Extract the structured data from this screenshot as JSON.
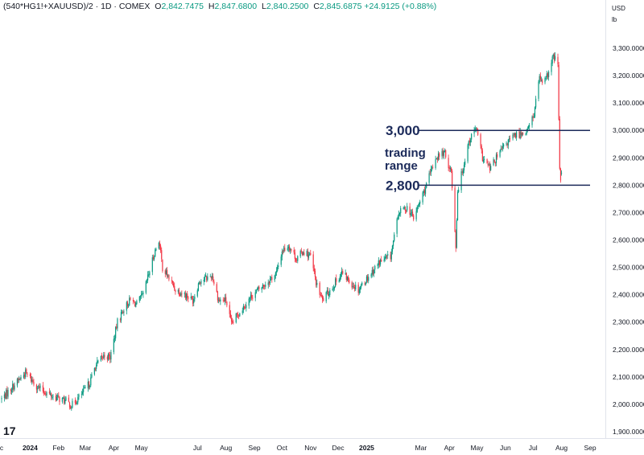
{
  "header": {
    "symbol": "(540*HG1!+XAUUSD)/2 · 1D · COMEX",
    "open_label": "O",
    "open": "2,842.7475",
    "high_label": "H",
    "high": "2,847.6800",
    "low_label": "L",
    "low": "2,840.2500",
    "close_label": "C",
    "close": "2,845.6875",
    "change": "+24.9125 (+0.88%)"
  },
  "axis": {
    "currency": "USD",
    "unit": "lb"
  },
  "logo": {
    "text": "17"
  },
  "chart_data": {
    "type": "candlestick",
    "ylim": [
      1900,
      3400
    ],
    "yticks": [
      1900,
      2000,
      2100,
      2200,
      2300,
      2400,
      2500,
      2600,
      2700,
      2800,
      2900,
      3000,
      3100,
      3200,
      3300
    ],
    "ytick_labels": [
      "1,900.0000",
      "2,000.0000",
      "2,100.0000",
      "2,200.0000",
      "2,300.0000",
      "2,400.0000",
      "2,500.0000",
      "2,600.0000",
      "2,700.0000",
      "2,800.0000",
      "2,900.0000",
      "3,000.0000",
      "3,100.0000",
      "3,200.0000",
      "3,300.0000"
    ],
    "xticks": [
      {
        "label": "c",
        "date": "2023-12-01",
        "bold": false
      },
      {
        "label": "2024",
        "date": "2024-01-01",
        "bold": true
      },
      {
        "label": "Feb",
        "date": "2024-02-01",
        "bold": false
      },
      {
        "label": "Mar",
        "date": "2024-03-01",
        "bold": false
      },
      {
        "label": "Apr",
        "date": "2024-04-01",
        "bold": false
      },
      {
        "label": "May",
        "date": "2024-05-01",
        "bold": false
      },
      {
        "label": "Jul",
        "date": "2024-07-01",
        "bold": false
      },
      {
        "label": "Aug",
        "date": "2024-08-01",
        "bold": false
      },
      {
        "label": "Sep",
        "date": "2024-09-01",
        "bold": false
      },
      {
        "label": "Oct",
        "date": "2024-10-01",
        "bold": false
      },
      {
        "label": "Nov",
        "date": "2024-11-01",
        "bold": false
      },
      {
        "label": "Dec",
        "date": "2024-12-01",
        "bold": false
      },
      {
        "label": "2025",
        "date": "2025-01-01",
        "bold": true
      },
      {
        "label": "Mar",
        "date": "2025-03-01",
        "bold": false
      },
      {
        "label": "Apr",
        "date": "2025-04-01",
        "bold": false
      },
      {
        "label": "May",
        "date": "2025-05-01",
        "bold": false
      },
      {
        "label": "Jun",
        "date": "2025-06-01",
        "bold": false
      },
      {
        "label": "Jul",
        "date": "2025-07-01",
        "bold": false
      },
      {
        "label": "Aug",
        "date": "2025-08-01",
        "bold": false
      },
      {
        "label": "Sep",
        "date": "2025-09-01",
        "bold": false
      }
    ],
    "price_path": [
      [
        "2023-12-01",
        2020
      ],
      [
        "2023-12-20",
        2090
      ],
      [
        "2023-12-27",
        2115
      ],
      [
        "2024-01-10",
        2060
      ],
      [
        "2024-01-25",
        2030
      ],
      [
        "2024-02-10",
        2010
      ],
      [
        "2024-02-15",
        1995
      ],
      [
        "2024-02-28",
        2045
      ],
      [
        "2024-03-06",
        2080
      ],
      [
        "2024-03-12",
        2140
      ],
      [
        "2024-03-22",
        2180
      ],
      [
        "2024-03-28",
        2170
      ],
      [
        "2024-04-05",
        2300
      ],
      [
        "2024-04-12",
        2350
      ],
      [
        "2024-04-19",
        2380
      ],
      [
        "2024-04-26",
        2365
      ],
      [
        "2024-05-03",
        2400
      ],
      [
        "2024-05-15",
        2550
      ],
      [
        "2024-05-20",
        2600
      ],
      [
        "2024-05-24",
        2500
      ],
      [
        "2024-06-07",
        2420
      ],
      [
        "2024-06-18",
        2400
      ],
      [
        "2024-06-26",
        2380
      ],
      [
        "2024-07-03",
        2450
      ],
      [
        "2024-07-17",
        2470
      ],
      [
        "2024-07-24",
        2380
      ],
      [
        "2024-08-01",
        2380
      ],
      [
        "2024-08-07",
        2290
      ],
      [
        "2024-08-14",
        2330
      ],
      [
        "2024-08-30",
        2400
      ],
      [
        "2024-09-13",
        2440
      ],
      [
        "2024-09-25",
        2480
      ],
      [
        "2024-10-01",
        2560
      ],
      [
        "2024-10-08",
        2580
      ],
      [
        "2024-10-17",
        2530
      ],
      [
        "2024-10-24",
        2560
      ],
      [
        "2024-11-01",
        2540
      ],
      [
        "2024-11-08",
        2430
      ],
      [
        "2024-11-14",
        2380
      ],
      [
        "2024-11-25",
        2430
      ],
      [
        "2024-12-05",
        2480
      ],
      [
        "2024-12-16",
        2440
      ],
      [
        "2024-12-23",
        2420
      ],
      [
        "2025-01-06",
        2480
      ],
      [
        "2025-01-15",
        2520
      ],
      [
        "2025-01-27",
        2540
      ],
      [
        "2025-02-05",
        2700
      ],
      [
        "2025-02-14",
        2720
      ],
      [
        "2025-02-21",
        2680
      ],
      [
        "2025-03-07",
        2800
      ],
      [
        "2025-03-17",
        2900
      ],
      [
        "2025-03-26",
        2920
      ],
      [
        "2025-04-03",
        2850
      ],
      [
        "2025-04-08",
        2580
      ],
      [
        "2025-04-10",
        2780
      ],
      [
        "2025-04-17",
        2880
      ],
      [
        "2025-04-22",
        2960
      ],
      [
        "2025-04-30",
        3010
      ],
      [
        "2025-05-07",
        2900
      ],
      [
        "2025-05-15",
        2860
      ],
      [
        "2025-05-28",
        2930
      ],
      [
        "2025-06-04",
        2960
      ],
      [
        "2025-06-11",
        2980
      ],
      [
        "2025-06-18",
        2990
      ],
      [
        "2025-06-25",
        3000
      ],
      [
        "2025-07-02",
        3060
      ],
      [
        "2025-07-08",
        3200
      ],
      [
        "2025-07-11",
        3160
      ],
      [
        "2025-07-18",
        3210
      ],
      [
        "2025-07-23",
        3270
      ],
      [
        "2025-07-28",
        3240
      ],
      [
        "2025-07-30",
        2850
      ],
      [
        "2025-07-31",
        2830
      ],
      [
        "2025-08-01",
        2846
      ]
    ],
    "last_price": 2845.69,
    "horizontal_lines": [
      {
        "value": 3000,
        "label": "3,000"
      },
      {
        "value": 2800,
        "label": "2,800"
      }
    ],
    "annotation": {
      "line1": "trading",
      "line2": "range"
    },
    "colors": {
      "up": "#089981",
      "down": "#f23645",
      "level_line": "#1b2a5a",
      "annotation": "#1b2a5a",
      "text": "#131722"
    }
  }
}
